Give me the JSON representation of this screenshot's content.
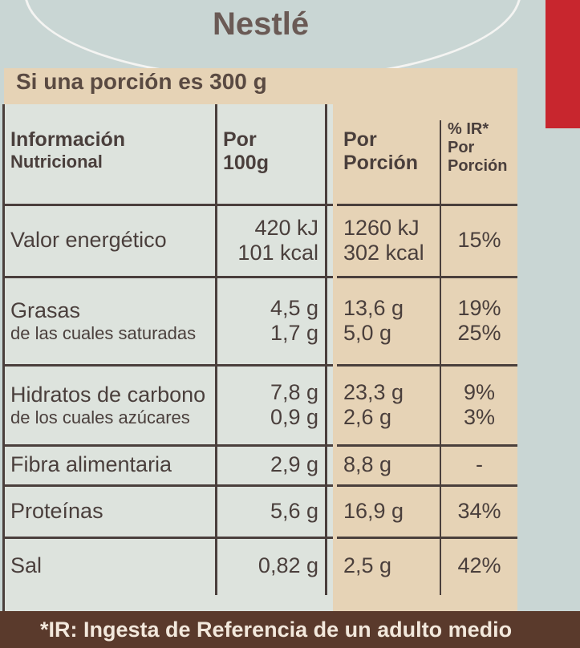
{
  "brand": "Nestlé",
  "portion_note": "Si una porción es 300 g",
  "table": {
    "header": [
      [
        "Información",
        "Nutricional"
      ],
      [
        "Por",
        "100g"
      ],
      [
        "Por",
        "Porción"
      ],
      [
        "% IR*",
        "Por",
        "Porción"
      ]
    ],
    "rows": [
      [
        [
          "Valor energético"
        ],
        [
          "420 kJ",
          "101 kcal"
        ],
        [
          "1260 kJ",
          "302 kcal"
        ],
        [
          "15%"
        ]
      ],
      [
        [
          "Grasas",
          "de las cuales saturadas"
        ],
        [
          "4,5 g",
          "1,7 g"
        ],
        [
          "13,6 g",
          "5,0 g"
        ],
        [
          "19%",
          "25%"
        ]
      ],
      [
        [
          "Hidratos de carbono",
          "de los cuales azúcares"
        ],
        [
          "7,8 g",
          "0,9 g"
        ],
        [
          "23,3 g",
          "2,6 g"
        ],
        [
          "9%",
          "3%"
        ]
      ],
      [
        [
          "Fibra alimentaria"
        ],
        [
          "2,9 g"
        ],
        [
          "8,8 g"
        ],
        [
          "-"
        ]
      ],
      [
        [
          "Proteínas"
        ],
        [
          "5,6 g"
        ],
        [
          "16,9 g"
        ],
        [
          "34%"
        ]
      ],
      [
        [
          "Sal"
        ],
        [
          "0,82 g"
        ],
        [
          "2,5 g"
        ],
        [
          "42%"
        ]
      ]
    ]
  },
  "footnote": "*IR: Ingesta de Referencia de un adulto medio"
}
